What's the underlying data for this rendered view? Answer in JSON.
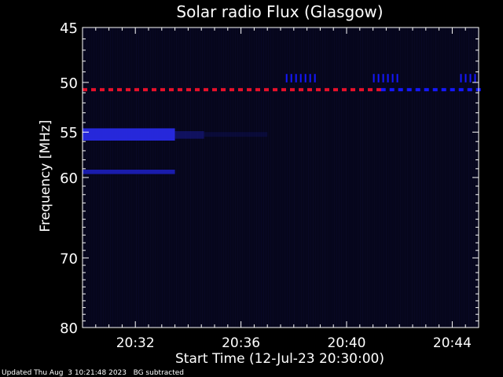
{
  "chart_data": {
    "type": "heatmap",
    "title": "Solar radio Flux (Glasgow)",
    "xlabel": "Start Time (12-Jul-23 20:30:00)",
    "ylabel": "Frequency [MHz]",
    "x_tick_labels": [
      "20:32",
      "20:36",
      "20:40",
      "20:44"
    ],
    "x_ticks_minutes": [
      2,
      6,
      10,
      14
    ],
    "xlim_minutes": [
      0,
      15
    ],
    "y_tick_labels": [
      "45",
      "50",
      "55",
      "60",
      "70",
      "80"
    ],
    "y_ticks": [
      45,
      50,
      55,
      60,
      70,
      80
    ],
    "ylim": [
      45,
      80
    ],
    "features": [
      {
        "kind": "dashed-line",
        "freq": 50.7,
        "t_start": 0,
        "t_end": 11.3,
        "color": "#e8102a"
      },
      {
        "kind": "dashed-line",
        "freq": 50.7,
        "t_start": 11.3,
        "t_end": 15,
        "color": "#1418ff"
      },
      {
        "kind": "band",
        "freq_low": 54.6,
        "freq_high": 55.9,
        "t_start": 0,
        "t_end": 3.5,
        "color": "#2a2cf0",
        "intensity": 0.9
      },
      {
        "kind": "band",
        "freq_low": 54.9,
        "freq_high": 55.7,
        "t_start": 3.5,
        "t_end": 4.6,
        "color": "#1a1ca0",
        "intensity": 0.5
      },
      {
        "kind": "band",
        "freq_low": 55.0,
        "freq_high": 55.5,
        "t_start": 4.6,
        "t_end": 7.0,
        "color": "#12146a",
        "intensity": 0.35
      },
      {
        "kind": "band",
        "freq_low": 59.1,
        "freq_high": 59.6,
        "t_start": 0,
        "t_end": 3.5,
        "color": "#1f22d0",
        "intensity": 0.8
      },
      {
        "kind": "ticks",
        "freq_low": 49.2,
        "freq_high": 50.0,
        "t_start": 7.7,
        "t_end": 8.8,
        "color": "#1418ff"
      },
      {
        "kind": "ticks",
        "freq_low": 49.2,
        "freq_high": 50.0,
        "t_start": 11.0,
        "t_end": 12.0,
        "color": "#1418ff"
      },
      {
        "kind": "ticks",
        "freq_low": 49.2,
        "freq_high": 50.0,
        "t_start": 14.3,
        "t_end": 14.9,
        "color": "#1418ff"
      }
    ],
    "background": "#06061c",
    "colors": {
      "axis": "#ffffff",
      "text": "#ffffff",
      "red_line": "#e8102a",
      "blue": "#1418ff"
    }
  },
  "footer": {
    "text": "Updated Thu Aug  3 10:21:48 2023   BG subtracted"
  }
}
